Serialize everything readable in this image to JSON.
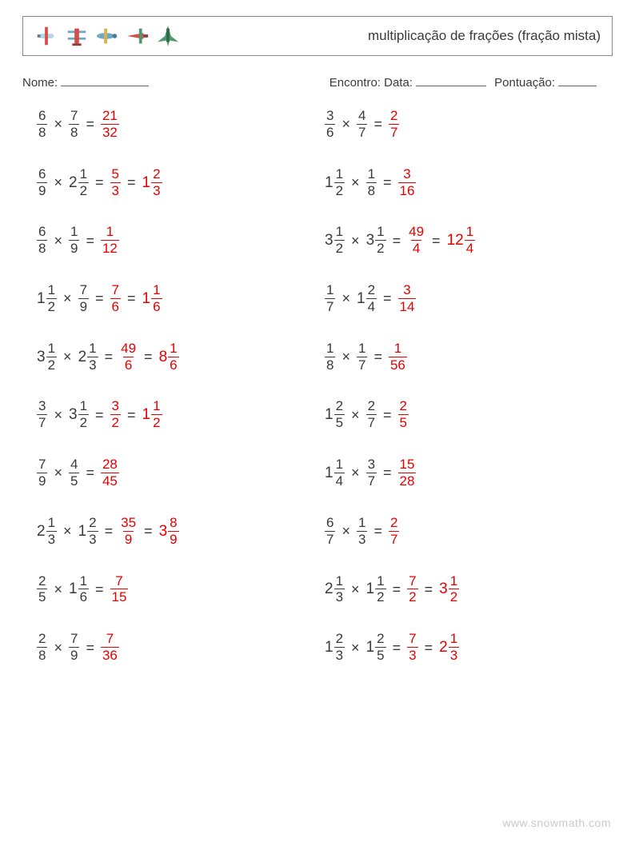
{
  "meta": {
    "title": "multiplicação de frações (fração mista)",
    "name_label": "Nome:",
    "encounter_label": "Encontro: Data:",
    "score_label": "Pontuação:",
    "watermark": "www.snowmath.com",
    "name_blank_width": 110,
    "date_blank_width": 88,
    "score_blank_width": 48,
    "text_color": "#3a3a3a",
    "answer_color": "#e60000",
    "background_color": "#ffffff"
  },
  "icons": [
    {
      "name": "plane-right",
      "body": "#b6d6e4",
      "accent": "#d94b4b",
      "dark": "#5f7a87"
    },
    {
      "name": "biplane",
      "body": "#d94b4b",
      "accent": "#6fa8c7",
      "dark": "#8a3b3b"
    },
    {
      "name": "plane-left",
      "body": "#6fa8c7",
      "accent": "#d9b24b",
      "dark": "#4a7a94"
    },
    {
      "name": "plane-small",
      "body": "#d94b4b",
      "accent": "#4b9a6b",
      "dark": "#8a3b3b"
    },
    {
      "name": "jet",
      "body": "#4b9a6b",
      "accent": "#2f6b47",
      "dark": "#2f6b47"
    }
  ],
  "problems": {
    "left": [
      {
        "a": {
          "n": 6,
          "d": 8
        },
        "b": {
          "n": 7,
          "d": 8
        },
        "r1": {
          "n": 21,
          "d": 32
        }
      },
      {
        "a": {
          "n": 6,
          "d": 9
        },
        "b": {
          "w": 2,
          "n": 1,
          "d": 2
        },
        "r1": {
          "n": 5,
          "d": 3
        },
        "r2": {
          "w": 1,
          "n": 2,
          "d": 3
        }
      },
      {
        "a": {
          "n": 6,
          "d": 8
        },
        "b": {
          "n": 1,
          "d": 9
        },
        "r1": {
          "n": 1,
          "d": 12
        }
      },
      {
        "a": {
          "w": 1,
          "n": 1,
          "d": 2
        },
        "b": {
          "n": 7,
          "d": 9
        },
        "r1": {
          "n": 7,
          "d": 6
        },
        "r2": {
          "w": 1,
          "n": 1,
          "d": 6
        }
      },
      {
        "a": {
          "w": 3,
          "n": 1,
          "d": 2
        },
        "b": {
          "w": 2,
          "n": 1,
          "d": 3
        },
        "r1": {
          "n": 49,
          "d": 6
        },
        "r2": {
          "w": 8,
          "n": 1,
          "d": 6
        }
      },
      {
        "a": {
          "n": 3,
          "d": 7
        },
        "b": {
          "w": 3,
          "n": 1,
          "d": 2
        },
        "r1": {
          "n": 3,
          "d": 2
        },
        "r2": {
          "w": 1,
          "n": 1,
          "d": 2
        }
      },
      {
        "a": {
          "n": 7,
          "d": 9
        },
        "b": {
          "n": 4,
          "d": 5
        },
        "r1": {
          "n": 28,
          "d": 45
        }
      },
      {
        "a": {
          "w": 2,
          "n": 1,
          "d": 3
        },
        "b": {
          "w": 1,
          "n": 2,
          "d": 3
        },
        "r1": {
          "n": 35,
          "d": 9
        },
        "r2": {
          "w": 3,
          "n": 8,
          "d": 9
        }
      },
      {
        "a": {
          "n": 2,
          "d": 5
        },
        "b": {
          "w": 1,
          "n": 1,
          "d": 6
        },
        "r1": {
          "n": 7,
          "d": 15
        }
      },
      {
        "a": {
          "n": 2,
          "d": 8
        },
        "b": {
          "n": 7,
          "d": 9
        },
        "r1": {
          "n": 7,
          "d": 36
        }
      }
    ],
    "right": [
      {
        "a": {
          "n": 3,
          "d": 6
        },
        "b": {
          "n": 4,
          "d": 7
        },
        "r1": {
          "n": 2,
          "d": 7
        }
      },
      {
        "a": {
          "w": 1,
          "n": 1,
          "d": 2
        },
        "b": {
          "n": 1,
          "d": 8
        },
        "r1": {
          "n": 3,
          "d": 16
        }
      },
      {
        "a": {
          "w": 3,
          "n": 1,
          "d": 2
        },
        "b": {
          "w": 3,
          "n": 1,
          "d": 2
        },
        "r1": {
          "n": 49,
          "d": 4
        },
        "r2": {
          "w": 12,
          "n": 1,
          "d": 4
        }
      },
      {
        "a": {
          "n": 1,
          "d": 7
        },
        "b": {
          "w": 1,
          "n": 2,
          "d": 4
        },
        "r1": {
          "n": 3,
          "d": 14
        }
      },
      {
        "a": {
          "n": 1,
          "d": 8
        },
        "b": {
          "n": 1,
          "d": 7
        },
        "r1": {
          "n": 1,
          "d": 56
        }
      },
      {
        "a": {
          "w": 1,
          "n": 2,
          "d": 5
        },
        "b": {
          "n": 2,
          "d": 7
        },
        "r1": {
          "n": 2,
          "d": 5
        }
      },
      {
        "a": {
          "w": 1,
          "n": 1,
          "d": 4
        },
        "b": {
          "n": 3,
          "d": 7
        },
        "r1": {
          "n": 15,
          "d": 28
        }
      },
      {
        "a": {
          "n": 6,
          "d": 7
        },
        "b": {
          "n": 1,
          "d": 3
        },
        "r1": {
          "n": 2,
          "d": 7
        }
      },
      {
        "a": {
          "w": 2,
          "n": 1,
          "d": 3
        },
        "b": {
          "w": 1,
          "n": 1,
          "d": 2
        },
        "r1": {
          "n": 7,
          "d": 2
        },
        "r2": {
          "w": 3,
          "n": 1,
          "d": 2
        }
      },
      {
        "a": {
          "w": 1,
          "n": 2,
          "d": 3
        },
        "b": {
          "w": 1,
          "n": 2,
          "d": 5
        },
        "r1": {
          "n": 7,
          "d": 3
        },
        "r2": {
          "w": 2,
          "n": 1,
          "d": 3
        }
      }
    ]
  }
}
